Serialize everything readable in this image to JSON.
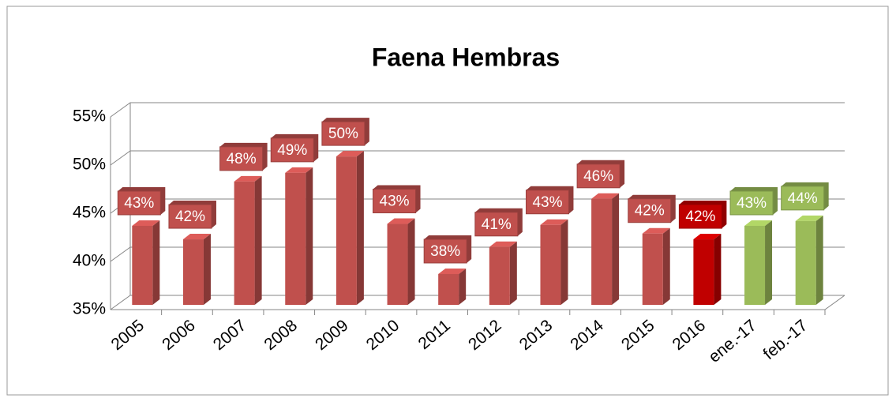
{
  "chart_data": {
    "type": "bar",
    "title": "Faena Hembras",
    "categories": [
      "2005",
      "2006",
      "2007",
      "2008",
      "2009",
      "2010",
      "2011",
      "2012",
      "2013",
      "2014",
      "2015",
      "2016",
      "ene.-17",
      "feb.-17"
    ],
    "values": [
      43.2,
      41.8,
      47.8,
      48.7,
      50.4,
      43.4,
      38.2,
      41,
      43.3,
      46,
      42.4,
      41.8,
      43.2,
      43.7
    ],
    "value_labels": [
      "43%",
      "42%",
      "48%",
      "49%",
      "50%",
      "43%",
      "38%",
      "41%",
      "43%",
      "46%",
      "42%",
      "42%",
      "43%",
      "44%"
    ],
    "colors": [
      "#c0504d",
      "#c0504d",
      "#c0504d",
      "#c0504d",
      "#c0504d",
      "#c0504d",
      "#c0504d",
      "#c0504d",
      "#c0504d",
      "#c0504d",
      "#c0504d",
      "#c00000",
      "#9bbb59",
      "#9bbb59"
    ],
    "ylim": [
      35,
      55
    ],
    "yticks": [
      {
        "value": 35,
        "label": "35%"
      },
      {
        "value": 40,
        "label": "40%"
      },
      {
        "value": 45,
        "label": "45%"
      },
      {
        "value": 50,
        "label": "50%"
      },
      {
        "value": 55,
        "label": "55%"
      }
    ],
    "grid": true
  }
}
